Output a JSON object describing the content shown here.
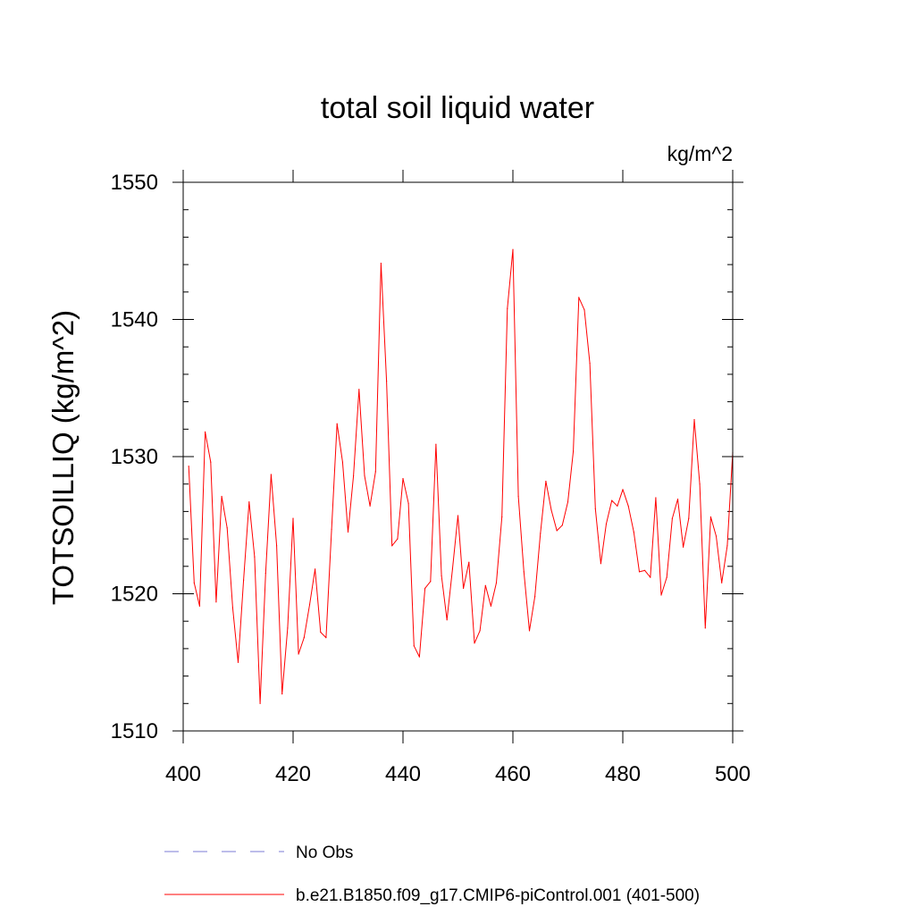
{
  "chart_data": {
    "type": "line",
    "title": "total soil liquid water",
    "units_label": "kg/m^2",
    "ylabel": "TOTSOILLIQ  (kg/m^2)",
    "xlabel": "",
    "xlim": [
      400,
      500
    ],
    "ylim": [
      1510,
      1550
    ],
    "x_ticks": [
      "400",
      "420",
      "440",
      "460",
      "480",
      "500"
    ],
    "y_ticks": [
      "1510",
      "1520",
      "1530",
      "1540",
      "1550"
    ],
    "series": [
      {
        "name": "No Obs",
        "style": "dashed",
        "color": "#7b7bd6",
        "x": [],
        "values": []
      },
      {
        "name": "b.e21.B1850.f09_g17.CMIP6-piControl.001 (401-500)",
        "style": "solid",
        "color": "#ff0000",
        "x": [
          401,
          402,
          403,
          404,
          405,
          406,
          407,
          408,
          409,
          410,
          411,
          412,
          413,
          414,
          415,
          416,
          417,
          418,
          419,
          420,
          421,
          422,
          423,
          424,
          425,
          426,
          427,
          428,
          429,
          430,
          431,
          432,
          433,
          434,
          435,
          436,
          437,
          438,
          439,
          440,
          441,
          442,
          443,
          444,
          445,
          446,
          447,
          448,
          449,
          450,
          451,
          452,
          453,
          454,
          455,
          456,
          457,
          458,
          459,
          460,
          461,
          462,
          463,
          464,
          465,
          466,
          467,
          468,
          469,
          470,
          471,
          472,
          473,
          474,
          475,
          476,
          477,
          478,
          479,
          480,
          481,
          482,
          483,
          484,
          485,
          486,
          487,
          488,
          489,
          490,
          491,
          492,
          493,
          494,
          495,
          496,
          497,
          498,
          499,
          500
        ],
        "values": [
          1529.3,
          1520.8,
          1519.1,
          1531.8,
          1529.6,
          1519.4,
          1527.1,
          1524.8,
          1519.0,
          1515.0,
          1521.0,
          1526.7,
          1522.7,
          1512.0,
          1521.5,
          1528.7,
          1523.5,
          1512.7,
          1517.5,
          1525.5,
          1515.6,
          1516.8,
          1519.2,
          1521.8,
          1517.2,
          1516.8,
          1524.7,
          1532.4,
          1529.6,
          1524.5,
          1528.6,
          1534.9,
          1528.6,
          1526.4,
          1528.9,
          1544.1,
          1535.5,
          1523.5,
          1524.0,
          1528.4,
          1526.6,
          1516.2,
          1515.4,
          1520.4,
          1520.9,
          1530.9,
          1521.3,
          1518.1,
          1521.8,
          1525.7,
          1520.4,
          1522.3,
          1516.4,
          1517.3,
          1520.6,
          1519.1,
          1520.8,
          1525.6,
          1540.8,
          1545.1,
          1527.1,
          1521.6,
          1517.3,
          1519.8,
          1524.4,
          1528.2,
          1526.1,
          1524.6,
          1525.0,
          1526.7,
          1530.4,
          1541.6,
          1540.7,
          1536.8,
          1526.2,
          1522.2,
          1525.1,
          1526.8,
          1526.4,
          1527.6,
          1526.4,
          1524.5,
          1521.6,
          1521.7,
          1521.2,
          1527.0,
          1519.9,
          1521.2,
          1525.5,
          1526.9,
          1523.4,
          1525.5,
          1532.7,
          1528.0,
          1517.5,
          1525.6,
          1524.2,
          1520.8,
          1523.5,
          1530.3
        ]
      }
    ],
    "legend_position": "bottom"
  }
}
